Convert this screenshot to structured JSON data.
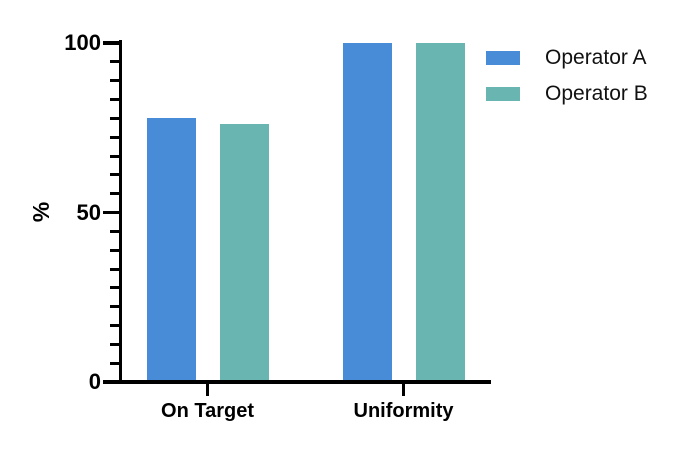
{
  "chart_data": {
    "type": "bar",
    "title": "",
    "categories": [
      "On Target",
      "Uniformity"
    ],
    "series": [
      {
        "name": "Operator A",
        "color": "#488CD8",
        "values": [
          78,
          100
        ]
      },
      {
        "name": "Operator B",
        "color": "#69B5B2",
        "values": [
          76,
          100
        ]
      }
    ],
    "ylabel": "%",
    "ylim": [
      0,
      100
    ],
    "yticks_major": [
      0,
      50,
      100
    ],
    "ytick_labels": [
      "0",
      "50",
      "100"
    ],
    "minor_ticks_per_interval": 8,
    "grid": false,
    "legend_position": "top-right",
    "background": "#FFFFFF",
    "axis_color": "#000000",
    "text_color": "#000000"
  }
}
